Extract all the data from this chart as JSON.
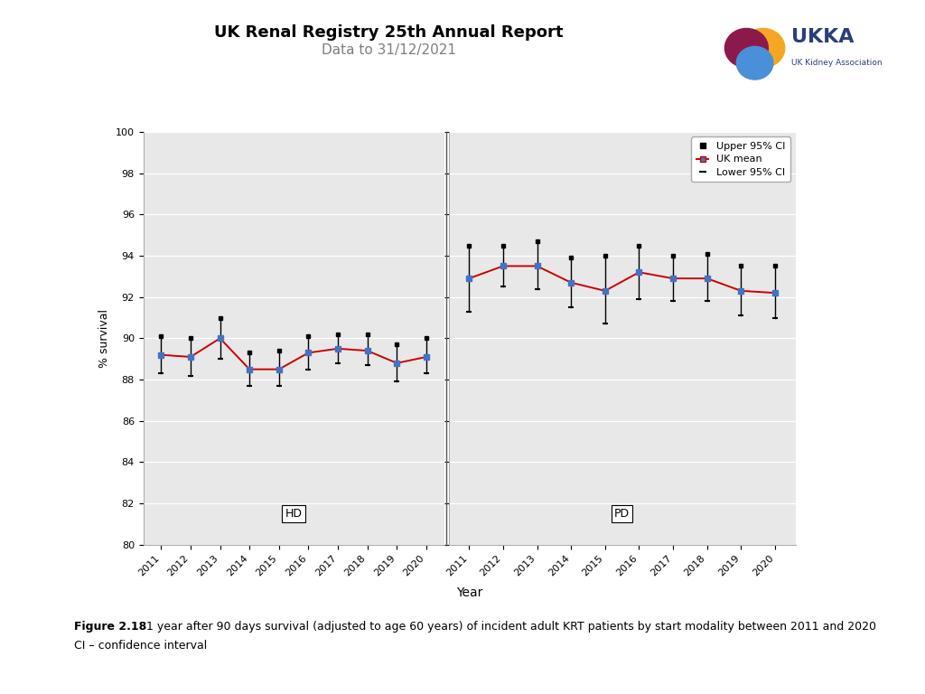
{
  "title": "UK Renal Registry 25th Annual Report",
  "subtitle": "Data to 31/12/2021",
  "xlabel": "Year",
  "ylabel": "% survival",
  "ylim": [
    80,
    100
  ],
  "yticks": [
    80,
    82,
    84,
    86,
    88,
    90,
    92,
    94,
    96,
    98,
    100
  ],
  "hd_years": [
    2011,
    2012,
    2013,
    2014,
    2015,
    2016,
    2017,
    2018,
    2019,
    2020
  ],
  "hd_mean": [
    89.2,
    89.1,
    90.0,
    88.5,
    88.5,
    89.3,
    89.5,
    89.4,
    88.8,
    89.1
  ],
  "hd_upper": [
    90.1,
    90.0,
    91.0,
    89.3,
    89.4,
    90.1,
    90.2,
    90.2,
    89.7,
    90.0
  ],
  "hd_lower": [
    88.3,
    88.2,
    89.0,
    87.7,
    87.7,
    88.5,
    88.8,
    88.7,
    87.9,
    88.3
  ],
  "pd_years": [
    2011,
    2012,
    2013,
    2014,
    2015,
    2016,
    2017,
    2018,
    2019,
    2020
  ],
  "pd_mean": [
    92.9,
    93.5,
    93.5,
    92.7,
    92.3,
    93.2,
    92.9,
    92.9,
    92.3,
    92.2
  ],
  "pd_upper": [
    94.5,
    94.5,
    94.7,
    93.9,
    94.0,
    94.5,
    94.0,
    94.1,
    93.5,
    93.5
  ],
  "pd_lower": [
    91.3,
    92.5,
    92.4,
    91.5,
    90.7,
    91.9,
    91.8,
    91.8,
    91.1,
    91.0
  ],
  "mean_color": "#cc0000",
  "line_color": "#4472c4",
  "ci_color": "#000000",
  "bg_color": "#e8e8e8",
  "figure_caption_bold": "Figure 2.18",
  "figure_caption": " 1 year after 90 days survival (adjusted to age 60 years) of incident adult KRT patients by start modality between 2011 and 2020",
  "figure_caption2": "CI – confidence interval",
  "ukka_text": "UK Kidney Association"
}
